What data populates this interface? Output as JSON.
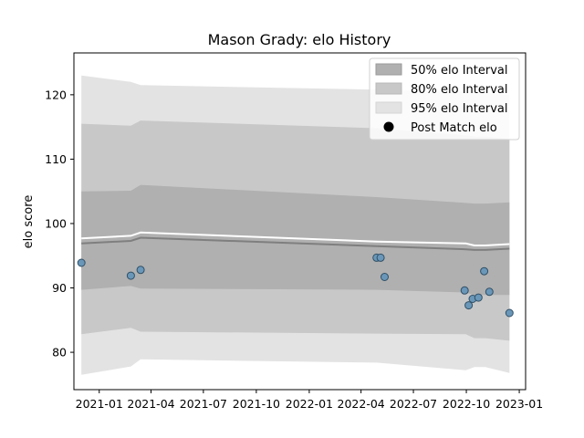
{
  "chart_data": {
    "type": "area",
    "title": "Mason Grady: elo History",
    "xlabel": "",
    "ylabel": "elo score",
    "x_ticks": [
      "2021-01",
      "2021-04",
      "2021-07",
      "2021-10",
      "2022-01",
      "2022-04",
      "2022-07",
      "2022-10",
      "2023-01"
    ],
    "y_ticks": [
      80,
      90,
      100,
      110,
      120
    ],
    "xlim": [
      "2020-11-18",
      "2023-01-12"
    ],
    "ylim": [
      74.2,
      126.5
    ],
    "grid": false,
    "legend_position": "top-right",
    "legend": [
      {
        "label": "50% elo Interval",
        "color": "#b0b0b0"
      },
      {
        "label": "80% elo Interval",
        "color": "#c8c8c8"
      },
      {
        "label": "95% elo Interval",
        "color": "#e3e3e3"
      },
      {
        "label": "Post Match elo",
        "color": "#000000"
      }
    ],
    "bands": {
      "dates": [
        "2020-12-01",
        "2021-02-25",
        "2021-03-14",
        "2022-04-28",
        "2022-09-30",
        "2022-10-15",
        "2022-11-03",
        "2022-12-15"
      ],
      "ci95_upper": [
        123.0,
        122.0,
        121.5,
        120.8,
        120.5,
        120.5,
        120.3,
        120.0
      ],
      "ci95_lower": [
        76.5,
        77.8,
        78.9,
        78.4,
        77.2,
        77.7,
        77.7,
        76.8
      ],
      "ci80_upper": [
        115.5,
        115.2,
        116.0,
        114.8,
        113.7,
        113.5,
        113.5,
        113.1
      ],
      "ci80_lower": [
        82.8,
        83.8,
        83.2,
        82.9,
        82.8,
        82.2,
        82.2,
        81.8
      ],
      "ci50_upper": [
        105.0,
        105.1,
        106.0,
        104.1,
        103.2,
        103.1,
        103.1,
        103.3
      ],
      "ci50_lower": [
        89.7,
        90.3,
        89.9,
        89.7,
        89.3,
        88.9,
        88.9,
        88.9
      ],
      "mean": [
        96.9,
        97.3,
        97.8,
        96.5,
        96.0,
        95.9,
        95.9,
        96.1
      ],
      "median": [
        97.7,
        98.1,
        98.6,
        97.2,
        96.9,
        96.6,
        96.6,
        96.8
      ]
    },
    "points": {
      "name": "Post Match elo",
      "color": "#6a97b8",
      "dates": [
        "2020-12-01",
        "2021-02-25",
        "2021-03-14",
        "2022-04-28",
        "2022-05-05",
        "2022-05-12",
        "2022-09-28",
        "2022-10-05",
        "2022-10-12",
        "2022-10-22",
        "2022-11-01",
        "2022-11-10",
        "2022-12-15"
      ],
      "values": [
        93.9,
        91.9,
        92.8,
        94.7,
        94.7,
        91.7,
        89.6,
        87.3,
        88.3,
        88.5,
        92.6,
        89.4,
        86.1
      ]
    }
  }
}
